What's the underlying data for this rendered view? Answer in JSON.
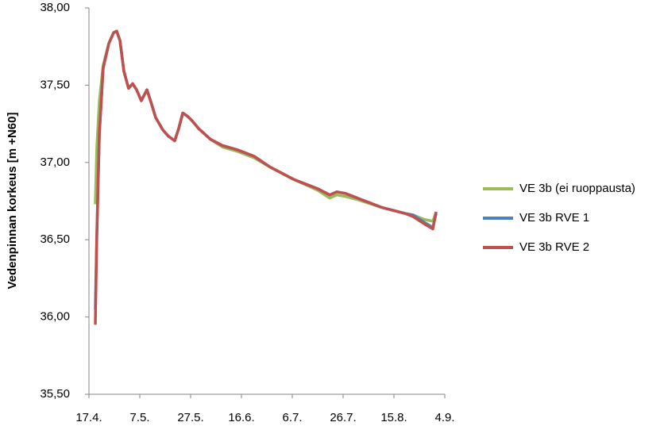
{
  "chart_data": {
    "type": "line",
    "y_label": "Vedenpinnan korkeus  [m +N60]",
    "x": [
      109.5,
      110.1,
      111.1,
      112.6,
      114.8,
      116.7,
      117.9,
      119.2,
      120.75,
      122.6,
      124.2,
      125.75,
      127.6,
      129.8,
      131.4,
      133.25,
      136.1,
      138.25,
      140.75,
      142.3,
      143.9,
      145.75,
      147.6,
      150.1,
      154.8,
      159.5,
      165.75,
      172,
      178.25,
      187.6,
      197,
      201.75,
      204.5,
      207.9,
      212.6,
      222,
      231.4,
      234.5,
      239.2,
      242.3,
      243.6
    ],
    "series": [
      {
        "name": "VE 3b (ei ruoppausta)",
        "color": "#9bbb59",
        "values": [
          36.73,
          37.1,
          37.4,
          37.63,
          37.77,
          37.84,
          37.85,
          37.79,
          37.59,
          37.48,
          37.51,
          37.47,
          37.4,
          37.47,
          37.39,
          37.29,
          37.21,
          37.17,
          37.14,
          37.22,
          37.32,
          37.3,
          37.27,
          37.22,
          37.15,
          37.1,
          37.07,
          37.03,
          36.97,
          36.89,
          36.82,
          36.77,
          36.79,
          36.78,
          36.76,
          36.71,
          36.67,
          36.66,
          36.63,
          36.62,
          36.68
        ]
      },
      {
        "name": "VE 3b RVE 1",
        "color": "#4f81bd",
        "values": [
          36.05,
          36.55,
          37.19,
          37.61,
          37.77,
          37.84,
          37.85,
          37.79,
          37.59,
          37.48,
          37.51,
          37.47,
          37.4,
          37.47,
          37.39,
          37.29,
          37.21,
          37.17,
          37.14,
          37.22,
          37.32,
          37.3,
          37.27,
          37.22,
          37.15,
          37.11,
          37.08,
          37.04,
          36.97,
          36.89,
          36.83,
          36.79,
          36.81,
          36.8,
          36.77,
          36.71,
          36.67,
          36.66,
          36.61,
          36.58,
          36.67
        ]
      },
      {
        "name": "VE 3b RVE 2",
        "color": "#c0504d",
        "values": [
          35.95,
          36.51,
          37.18,
          37.61,
          37.77,
          37.84,
          37.85,
          37.79,
          37.59,
          37.48,
          37.51,
          37.47,
          37.4,
          37.47,
          37.39,
          37.29,
          37.21,
          37.17,
          37.14,
          37.22,
          37.32,
          37.3,
          37.27,
          37.22,
          37.15,
          37.11,
          37.08,
          37.04,
          36.97,
          36.89,
          36.83,
          36.79,
          36.81,
          36.8,
          36.77,
          36.71,
          36.67,
          36.65,
          36.6,
          36.57,
          36.68
        ]
      }
    ],
    "xlim": [
      107,
      247
    ],
    "xticks": [
      {
        "value": 107,
        "label": "17.4."
      },
      {
        "value": 127,
        "label": "7.5."
      },
      {
        "value": 147,
        "label": "27.5."
      },
      {
        "value": 167,
        "label": "16.6."
      },
      {
        "value": 187,
        "label": "6.7."
      },
      {
        "value": 207,
        "label": "26.7."
      },
      {
        "value": 227,
        "label": "15.8."
      },
      {
        "value": 247,
        "label": "4.9."
      }
    ],
    "ylim": [
      35.5,
      38
    ],
    "yticks": [
      {
        "value": 35.5,
        "label": "35,50"
      },
      {
        "value": 36,
        "label": "36,00"
      },
      {
        "value": 36.5,
        "label": "36,50"
      },
      {
        "value": 37,
        "label": "37,00"
      },
      {
        "value": 37.5,
        "label": "37,50"
      },
      {
        "value": 38,
        "label": "38,00"
      }
    ],
    "grid": false,
    "legend": "right"
  }
}
